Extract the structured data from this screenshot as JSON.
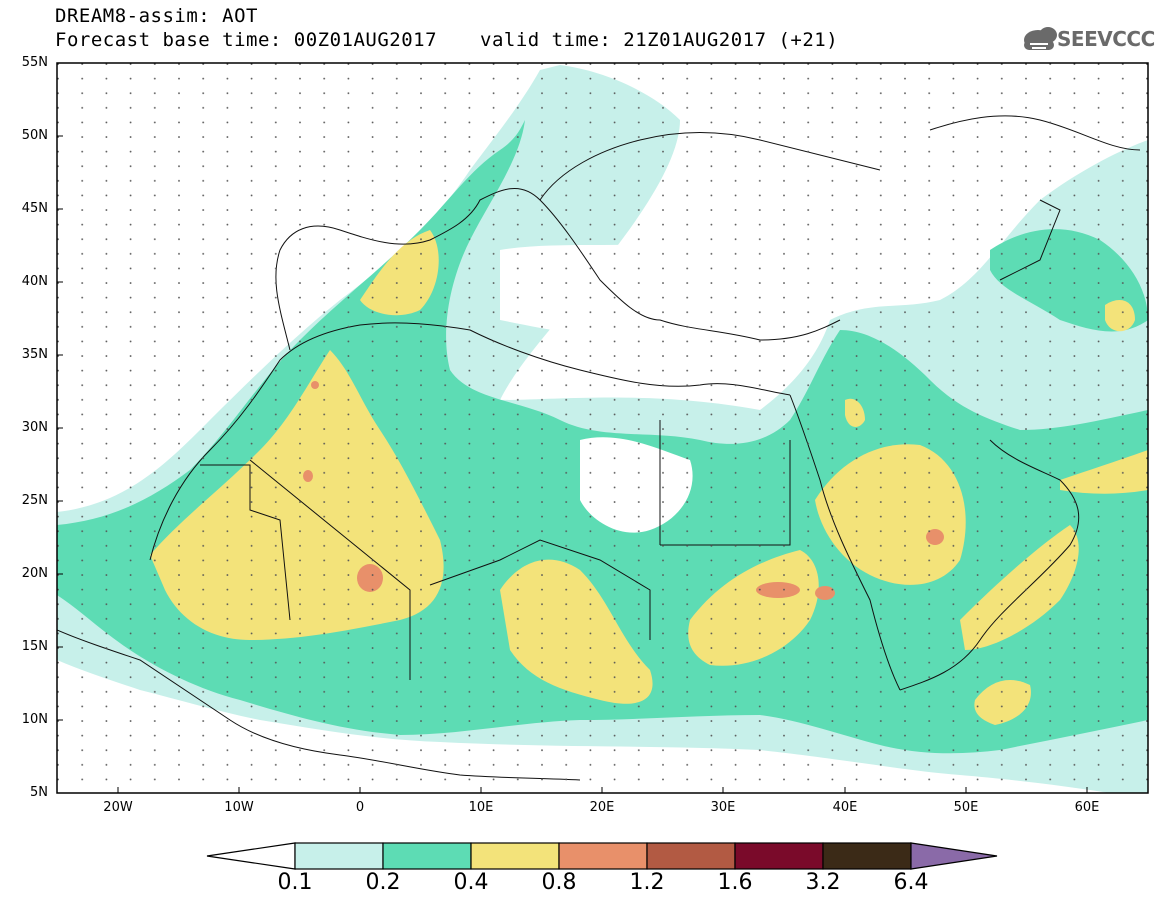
{
  "header": {
    "line1": "DREAM8-assim: AOT",
    "line2": "Forecast base time: 00Z01AUG2017",
    "valid": "valid time: 21Z01AUG2017 (+21)"
  },
  "logo": {
    "text": "SEEVCCC"
  },
  "axes": {
    "lat_labels": [
      "55N",
      "50N",
      "45N",
      "40N",
      "35N",
      "30N",
      "25N",
      "20N",
      "15N",
      "10N",
      "5N"
    ],
    "lon_labels": [
      "20W",
      "10W",
      "0",
      "10E",
      "20E",
      "30E",
      "40E",
      "50E",
      "60E"
    ]
  },
  "colorbar": {
    "labels": [
      "0.1",
      "0.2",
      "0.4",
      "0.8",
      "1.2",
      "1.6",
      "3.2",
      "6.4"
    ],
    "colors": [
      "#ffffff",
      "#c7f0ea",
      "#5ddcb4",
      "#f3e37a",
      "#e8906a",
      "#b25a43",
      "#7a0a2a",
      "#3b2a17",
      "#8a6aa8"
    ]
  },
  "map_colors": {
    "level_01": "#c7f0ea",
    "level_02": "#5ddcb4",
    "level_04": "#f3e37a",
    "level_08": "#e8906a"
  }
}
